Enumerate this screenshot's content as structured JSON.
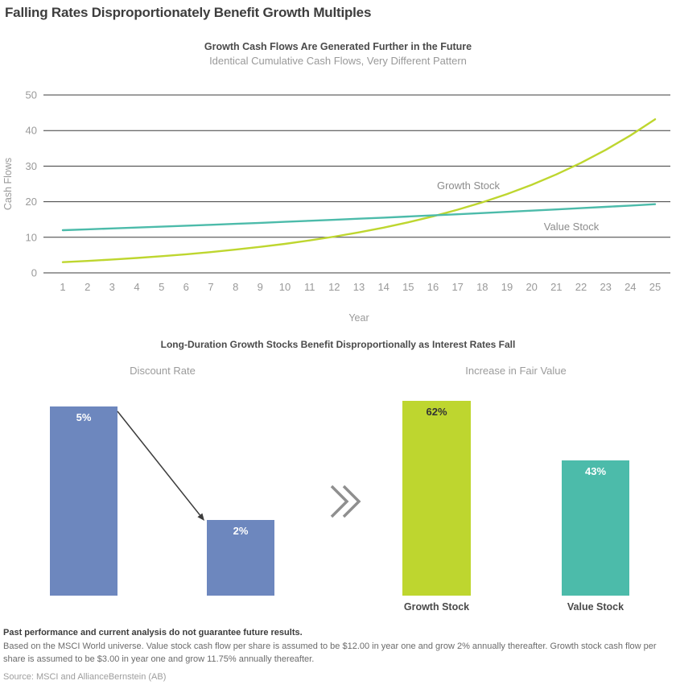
{
  "page_title": "Falling Rates Disproportionately Benefit Growth Multiples",
  "chart_data": [
    {
      "type": "line",
      "title": "Growth Cash Flows Are Generated Further in the Future",
      "subtitle": "Identical Cumulative Cash Flows, Very Different Pattern",
      "xlabel": "Year",
      "ylabel": "Cash Flows",
      "ylim": [
        0,
        50
      ],
      "yticks": [
        0,
        10,
        20,
        30,
        40,
        50
      ],
      "grid": "horizontal",
      "legend": "inline-labels",
      "x": [
        1,
        2,
        3,
        4,
        5,
        6,
        7,
        8,
        9,
        10,
        11,
        12,
        13,
        14,
        15,
        16,
        17,
        18,
        19,
        20,
        21,
        22,
        23,
        24,
        25
      ],
      "series": [
        {
          "name": "Growth Stock",
          "color": "#bed62f",
          "values": [
            3.0,
            3.35,
            3.75,
            4.19,
            4.68,
            5.23,
            5.84,
            6.53,
            7.3,
            8.15,
            9.11,
            10.18,
            11.38,
            12.72,
            14.21,
            15.88,
            17.75,
            19.83,
            22.16,
            24.76,
            27.67,
            30.93,
            34.56,
            38.62,
            43.16
          ]
        },
        {
          "name": "Value Stock",
          "color": "#4cbbaa",
          "values": [
            12.0,
            12.24,
            12.48,
            12.73,
            12.99,
            13.25,
            13.51,
            13.78,
            14.06,
            14.34,
            14.63,
            14.92,
            15.22,
            15.52,
            15.83,
            16.15,
            16.47,
            16.8,
            17.14,
            17.48,
            17.83,
            18.19,
            18.55,
            18.92,
            19.3
          ]
        }
      ]
    },
    {
      "type": "bar",
      "title": "Long-Duration Growth Stocks Benefit Disproportionally as Interest Rates Fall",
      "groups": [
        {
          "title": "Discount Rate",
          "annotation": "falling-rate-arrow",
          "bars": [
            {
              "label": "5%",
              "value": 5,
              "color": "#6d87be",
              "label_color": "#ffffff"
            },
            {
              "label": "2%",
              "value": 2,
              "color": "#6d87be",
              "label_color": "#ffffff"
            }
          ]
        },
        {
          "title": "Increase in Fair Value",
          "bars": [
            {
              "label": "62%",
              "value": 62,
              "color": "#bed62f",
              "label_color": "#333333",
              "category": "Growth Stock"
            },
            {
              "label": "43%",
              "value": 43,
              "color": "#4cbbaa",
              "label_color": "#ffffff",
              "category": "Value Stock"
            }
          ]
        }
      ]
    }
  ],
  "footer": {
    "disclaimer": "Past performance and current analysis do not guarantee future results.",
    "note": "Based on the MSCI World universe. Value stock cash flow per share is assumed to be $12.00 in year one and grow 2% annually thereafter. Growth stock cash flow per share is assumed to be $3.00 in year one and grow 11.75% annually thereafter.",
    "source": "Source: MSCI and AllianceBernstein (AB)"
  }
}
